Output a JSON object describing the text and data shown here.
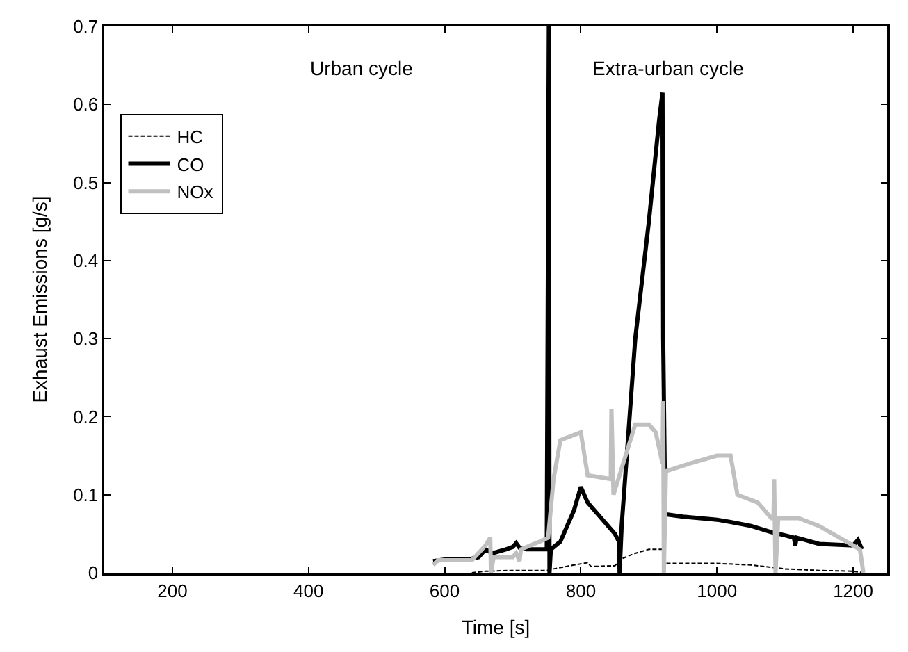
{
  "chart_data": {
    "type": "line",
    "xlabel": "Time [s]",
    "ylabel": "Exhaust Emissions [g/s]",
    "xlim": [
      100,
      1250
    ],
    "xticks": [
      200,
      400,
      600,
      800,
      1000,
      1200
    ],
    "ylim": [
      0,
      0.7
    ],
    "yticks": [
      0,
      0.1,
      0.2,
      0.3,
      0.4,
      0.5,
      0.6,
      0.7
    ],
    "legend": "top left",
    "marker": "none",
    "annotations": [
      "Urban cycle",
      "Extra-urban cycle"
    ],
    "series": [
      {
        "name": "HC",
        "color": "#000000",
        "line_style": "dashed",
        "x": [
          640,
          660,
          700,
          750,
          760,
          790,
          810,
          815,
          850,
          860,
          880,
          900,
          920,
          925,
          1000,
          1050,
          1100,
          1150,
          1200,
          1215
        ],
        "values": [
          0,
          0.002,
          0.003,
          0.003,
          0.005,
          0.01,
          0.013,
          0.008,
          0.009,
          0.018,
          0.025,
          0.03,
          0.03,
          0.012,
          0.012,
          0.01,
          0.005,
          0.003,
          0.002,
          0
        ]
      },
      {
        "name": "CO",
        "color": "#000000",
        "line_style": "solid",
        "x": [
          583,
          600,
          640,
          650,
          660,
          670,
          690,
          700,
          705,
          710,
          720,
          740,
          750,
          753,
          754,
          756,
          770,
          790,
          800,
          810,
          830,
          850,
          856,
          857,
          860,
          870,
          880,
          900,
          915,
          920,
          921,
          924,
          950,
          1000,
          1020,
          1050,
          1080,
          1100,
          1113,
          1115,
          1117,
          1150,
          1200,
          1207,
          1213
        ],
        "values": [
          0.015,
          0.017,
          0.018,
          0.02,
          0.03,
          0.025,
          0.03,
          0.033,
          0.038,
          0.032,
          0.03,
          0.03,
          0.03,
          0.7,
          0,
          0.03,
          0.04,
          0.08,
          0.11,
          0.09,
          0.07,
          0.05,
          0.04,
          0,
          0.06,
          0.18,
          0.3,
          0.45,
          0.58,
          0.615,
          0.3,
          0.075,
          0.072,
          0.068,
          0.065,
          0.06,
          0.052,
          0.048,
          0.045,
          0.035,
          0.045,
          0.037,
          0.035,
          0.042,
          0.03
        ]
      },
      {
        "name": "NOx",
        "color": "#c0c0c0",
        "line_style": "solid",
        "x": [
          583,
          590,
          640,
          660,
          667,
          668,
          672,
          700,
          705,
          710,
          712,
          740,
          752,
          760,
          770,
          800,
          810,
          844,
          845,
          848,
          880,
          900,
          910,
          920,
          921,
          922,
          925,
          960,
          1000,
          1020,
          1030,
          1060,
          1080,
          1083,
          1084,
          1086,
          1090,
          1120,
          1150,
          1190,
          1210,
          1215
        ],
        "values": [
          0.01,
          0.016,
          0.016,
          0.035,
          0.045,
          0,
          0.02,
          0.02,
          0.025,
          0.015,
          0.03,
          0.04,
          0.045,
          0.12,
          0.17,
          0.18,
          0.125,
          0.12,
          0.21,
          0.1,
          0.19,
          0.19,
          0.18,
          0.14,
          0.22,
          0,
          0.13,
          0.14,
          0.15,
          0.15,
          0.1,
          0.09,
          0.07,
          0.07,
          0.12,
          0,
          0.07,
          0.07,
          0.06,
          0.04,
          0.03,
          0
        ]
      }
    ]
  }
}
